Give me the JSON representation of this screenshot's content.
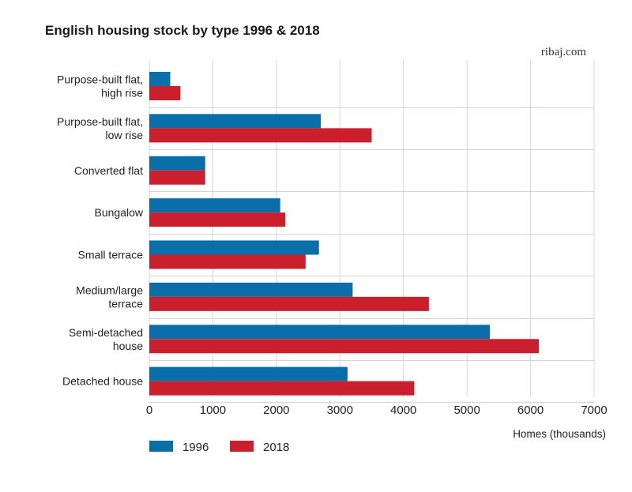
{
  "chart_data": {
    "type": "bar",
    "orientation": "horizontal",
    "title": "English housing stock by type 1996 & 2018",
    "source": "ribaj.com",
    "xlabel": "Homes (thousands)",
    "xlim": [
      0,
      7000
    ],
    "xticks": [
      "0",
      "1000",
      "2000",
      "3000",
      "4000",
      "5000",
      "6000",
      "7000"
    ],
    "grid": true,
    "legend_position": "bottom-left",
    "categories": [
      [
        "Purpose-built flat,",
        "high rise"
      ],
      [
        "Purpose-built flat,",
        "low rise"
      ],
      [
        "Converted flat"
      ],
      [
        "Bungalow"
      ],
      [
        "Small terrace"
      ],
      [
        "Medium/large",
        "terrace"
      ],
      [
        "Semi-detached",
        "house"
      ],
      [
        "Detached house"
      ]
    ],
    "series": [
      {
        "name": "1996",
        "color": "#0a6ea9",
        "values": [
          330,
          2700,
          880,
          2060,
          2670,
          3200,
          5360,
          3120
        ]
      },
      {
        "name": "2018",
        "color": "#cc1f2e",
        "values": [
          490,
          3500,
          880,
          2140,
          2460,
          4400,
          6130,
          4170
        ]
      }
    ]
  }
}
